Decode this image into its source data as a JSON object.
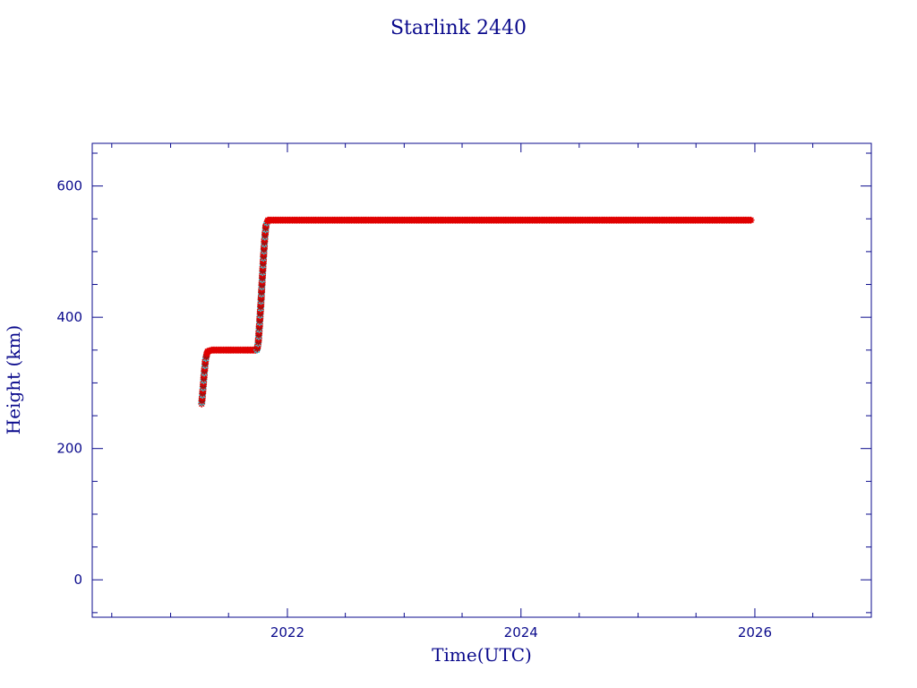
{
  "chart_data": {
    "type": "scatter",
    "title": "Starlink 2440",
    "xlabel": "Time(UTC)",
    "ylabel": "Height (km)",
    "xlim": [
      "2020-05-01",
      "2026-12-31"
    ],
    "ylim": [
      -57,
      665
    ],
    "x_ticks": [
      "2022",
      "2024",
      "2026"
    ],
    "y_ticks": [
      0,
      200,
      400,
      600
    ],
    "grid": false,
    "colors": {
      "axis": "#0a0a8c",
      "main": "#e00000",
      "highlight": "#22d8e8",
      "dark_marker": "#7a1a1a"
    },
    "series": [
      {
        "values": [
          {
            "x": "2021-04-08",
            "y": 268
          },
          {
            "x": "2021-04-12",
            "y": 290
          },
          {
            "x": "2021-04-16",
            "y": 315
          },
          {
            "x": "2021-04-20",
            "y": 335
          },
          {
            "x": "2021-04-26",
            "y": 348
          },
          {
            "x": "2021-05-10",
            "y": 350
          },
          {
            "x": "2021-06-15",
            "y": 350
          },
          {
            "x": "2021-07-20",
            "y": 350
          },
          {
            "x": "2021-08-25",
            "y": 350
          },
          {
            "x": "2021-09-28",
            "y": 350
          },
          {
            "x": "2021-10-02",
            "y": 362
          },
          {
            "x": "2021-10-06",
            "y": 390
          },
          {
            "x": "2021-10-10",
            "y": 420
          },
          {
            "x": "2021-10-14",
            "y": 455
          },
          {
            "x": "2021-10-18",
            "y": 490
          },
          {
            "x": "2021-10-22",
            "y": 520
          },
          {
            "x": "2021-10-26",
            "y": 540
          },
          {
            "x": "2021-11-01",
            "y": 548
          },
          {
            "x": "2022-06-01",
            "y": 548
          },
          {
            "x": "2023-01-01",
            "y": 548
          },
          {
            "x": "2024-01-01",
            "y": 548
          },
          {
            "x": "2025-01-01",
            "y": 548
          },
          {
            "x": "2025-12-20",
            "y": 548
          }
        ]
      }
    ]
  }
}
